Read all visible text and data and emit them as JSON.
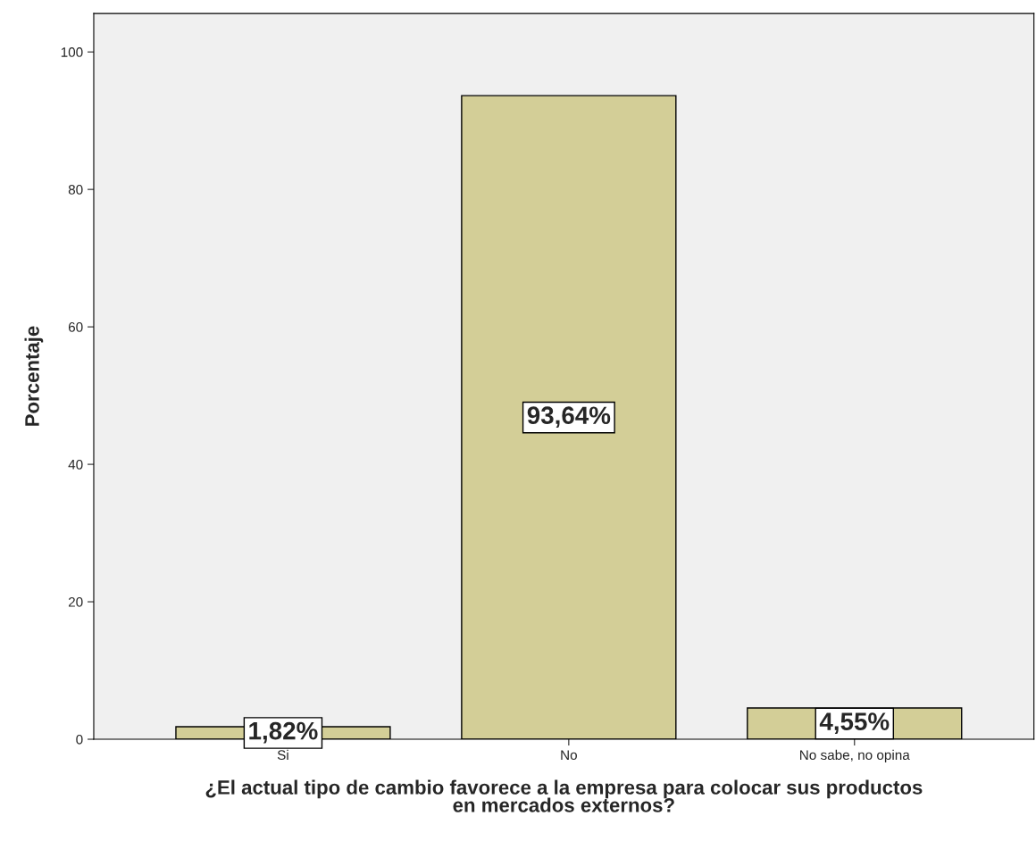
{
  "chart_data": {
    "type": "bar",
    "xlabel": "¿El actual tipo de cambio favorece a la empresa para colocar sus productos\nen mercados externos?",
    "ylabel": "Porcentaje",
    "categories": [
      "Si",
      "No",
      "No sabe, no opina"
    ],
    "values": [
      1.82,
      93.64,
      4.55
    ],
    "value_labels": [
      "1,82%",
      "93,64%",
      "4,55%"
    ],
    "color": "#d3ce97",
    "ylim": [
      0,
      105.6
    ],
    "yticks": [
      0,
      20,
      40,
      60,
      80,
      100
    ],
    "grid": false,
    "legend": false
  }
}
